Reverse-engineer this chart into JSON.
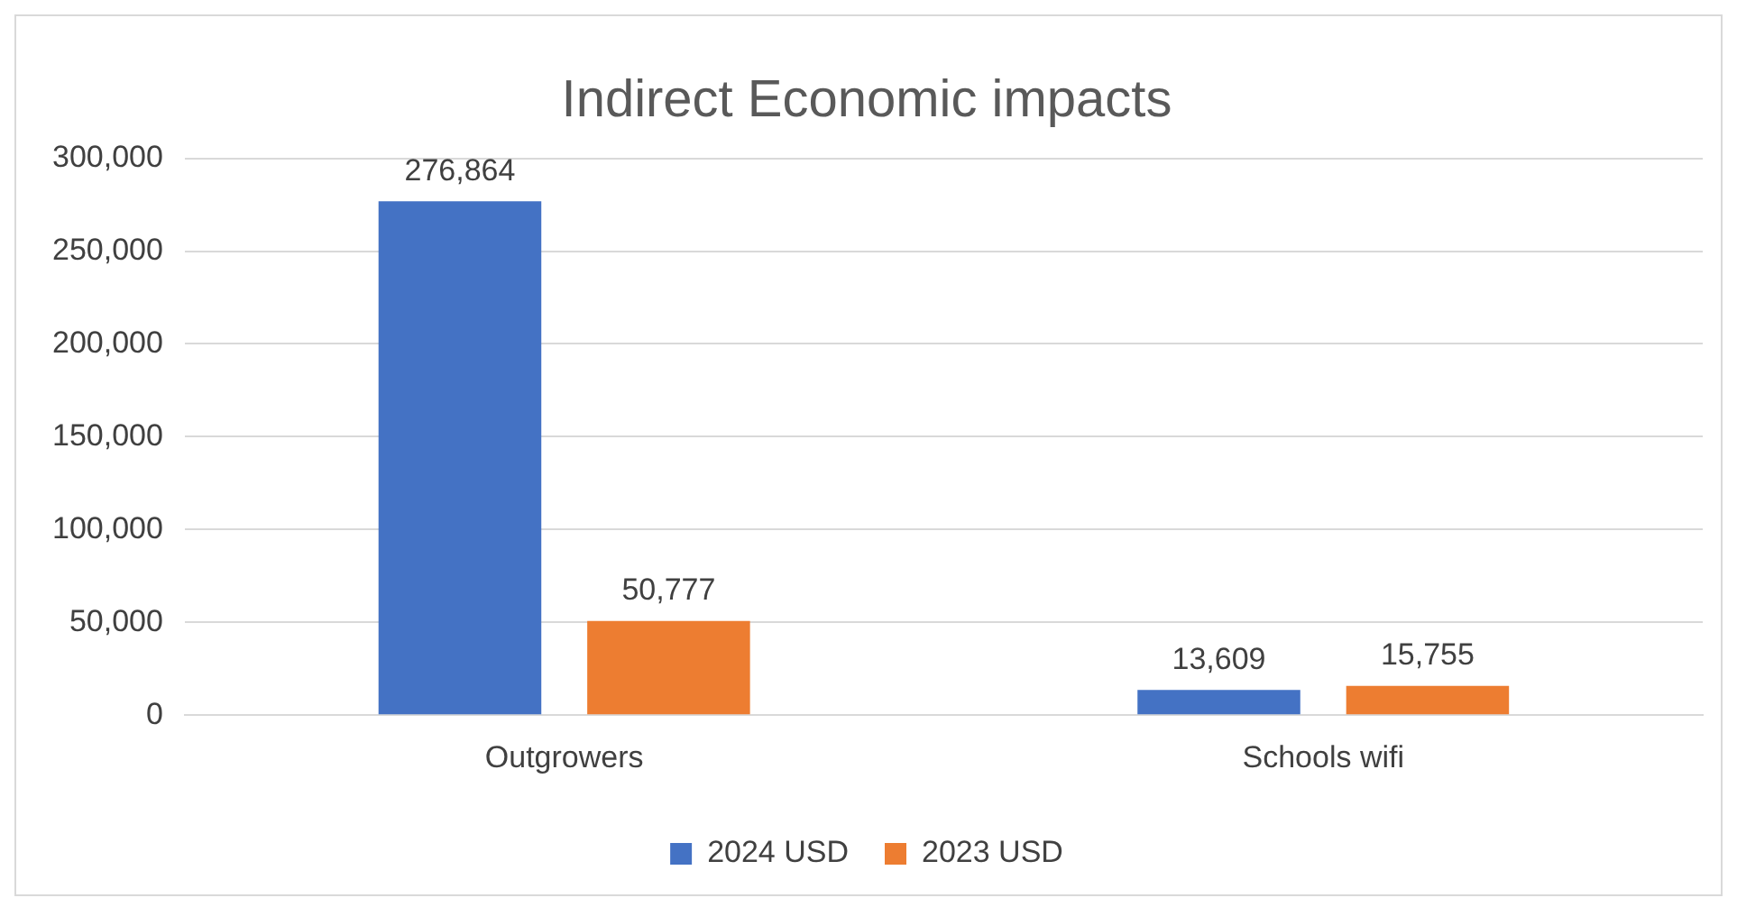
{
  "chart_data": {
    "type": "bar",
    "title": "Indirect Economic impacts",
    "categories": [
      "Outgrowers",
      "Schools wifi"
    ],
    "series": [
      {
        "name": "2024 USD",
        "color": "#4472c4",
        "values": [
          276864,
          13609
        ],
        "value_labels": [
          "276,864",
          "13,609"
        ]
      },
      {
        "name": "2023 USD",
        "color": "#ed7d31",
        "values": [
          50777,
          15755
        ],
        "value_labels": [
          "50,777",
          "15,755"
        ]
      }
    ],
    "ylim": [
      0,
      300000
    ],
    "yticks": [
      {
        "value": 0,
        "label": "0"
      },
      {
        "value": 50000,
        "label": "50,000"
      },
      {
        "value": 100000,
        "label": "100,000"
      },
      {
        "value": 150000,
        "label": "150,000"
      },
      {
        "value": 200000,
        "label": "200,000"
      },
      {
        "value": 250000,
        "label": "250,000"
      },
      {
        "value": 300000,
        "label": "300,000"
      }
    ],
    "grid": "y",
    "legend": "bottom"
  }
}
